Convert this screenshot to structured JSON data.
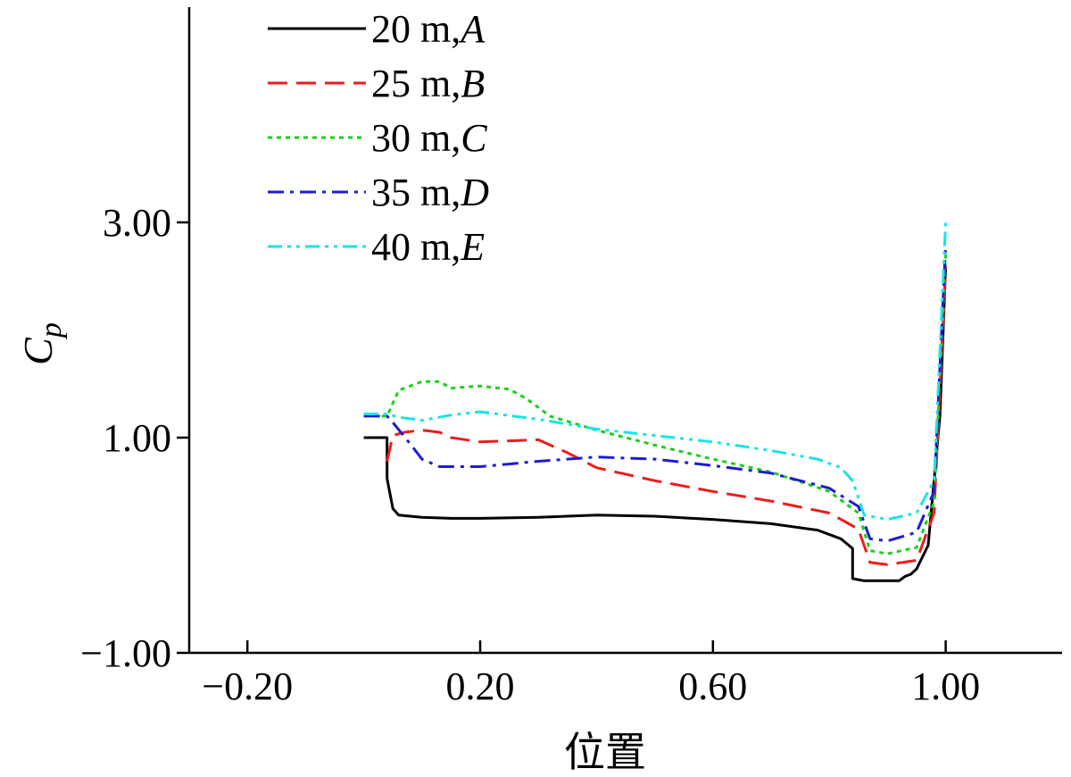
{
  "chart_data": {
    "type": "line",
    "title": "",
    "xlabel": "位置",
    "ylabel": "C",
    "ylabel_subscript": "p",
    "xlim": [
      -0.3,
      1.2
    ],
    "ylim": [
      -1.0,
      5.0
    ],
    "xticks": [
      -0.2,
      0.2,
      0.6,
      1.0
    ],
    "xtick_labels": [
      "−0.20",
      "0.20",
      "0.60",
      "1.00"
    ],
    "yticks": [
      -1.0,
      1.0,
      3.0
    ],
    "ytick_labels": [
      "−1.00",
      "1.00",
      "3.00"
    ],
    "grid": false,
    "legend_position": "top-left",
    "series": [
      {
        "name": "20 m, A",
        "legend_value": "20 m",
        "legend_letter": "A",
        "color": "#000000",
        "dash": "solid",
        "x": [
          0.0,
          0.04,
          0.04,
          0.05,
          0.06,
          0.1,
          0.15,
          0.2,
          0.3,
          0.4,
          0.5,
          0.6,
          0.7,
          0.78,
          0.82,
          0.84,
          0.84,
          0.86,
          0.92,
          0.93,
          0.94,
          0.95,
          0.97,
          0.99,
          1.0
        ],
        "y": [
          1.0,
          1.0,
          0.62,
          0.34,
          0.28,
          0.26,
          0.25,
          0.25,
          0.26,
          0.28,
          0.27,
          0.24,
          0.2,
          0.14,
          0.06,
          -0.03,
          -0.31,
          -0.33,
          -0.33,
          -0.29,
          -0.27,
          -0.22,
          0.0,
          1.2,
          2.6
        ]
      },
      {
        "name": "25 m, B",
        "legend_value": "25 m",
        "legend_letter": "B",
        "color": "#ee1c1c",
        "dash": "dashed",
        "x": [
          0.04,
          0.05,
          0.07,
          0.1,
          0.13,
          0.15,
          0.2,
          0.25,
          0.3,
          0.35,
          0.4,
          0.5,
          0.6,
          0.7,
          0.8,
          0.85,
          0.87,
          0.9,
          0.95,
          0.98,
          1.0
        ],
        "y": [
          0.78,
          1.02,
          1.05,
          1.07,
          1.05,
          1.0,
          0.96,
          0.97,
          0.98,
          0.86,
          0.72,
          0.6,
          0.5,
          0.41,
          0.3,
          0.15,
          -0.16,
          -0.18,
          -0.14,
          0.3,
          2.6
        ]
      },
      {
        "name": "30 m, C",
        "legend_value": "30 m",
        "legend_letter": "C",
        "color": "#1ccf1c",
        "dash": "dotted",
        "x": [
          0.0,
          0.04,
          0.06,
          0.1,
          0.13,
          0.15,
          0.2,
          0.25,
          0.28,
          0.32,
          0.4,
          0.5,
          0.6,
          0.7,
          0.8,
          0.85,
          0.87,
          0.9,
          0.95,
          0.98,
          1.0
        ],
        "y": [
          1.2,
          1.2,
          1.44,
          1.52,
          1.52,
          1.46,
          1.48,
          1.45,
          1.36,
          1.2,
          1.07,
          0.93,
          0.8,
          0.68,
          0.5,
          0.3,
          -0.05,
          -0.08,
          -0.02,
          0.4,
          2.7
        ]
      },
      {
        "name": "35 m, D",
        "legend_value": "35 m",
        "legend_letter": "D",
        "color": "#1c1cd8",
        "dash": "dashdot",
        "x": [
          0.0,
          0.04,
          0.05,
          0.08,
          0.1,
          0.13,
          0.2,
          0.3,
          0.4,
          0.5,
          0.6,
          0.7,
          0.8,
          0.85,
          0.87,
          0.9,
          0.95,
          0.98,
          1.0
        ],
        "y": [
          1.2,
          1.2,
          1.14,
          0.94,
          0.8,
          0.73,
          0.73,
          0.78,
          0.82,
          0.8,
          0.74,
          0.67,
          0.53,
          0.36,
          0.06,
          0.04,
          0.12,
          0.5,
          2.8
        ]
      },
      {
        "name": "40 m, E",
        "legend_value": "40 m",
        "legend_letter": "E",
        "color": "#19e4e4",
        "dash": "dashdotdot",
        "x": [
          0.0,
          0.04,
          0.06,
          0.1,
          0.15,
          0.2,
          0.3,
          0.4,
          0.5,
          0.6,
          0.7,
          0.78,
          0.82,
          0.84,
          0.86,
          0.9,
          0.95,
          0.98,
          1.0
        ],
        "y": [
          1.22,
          1.22,
          1.19,
          1.16,
          1.21,
          1.24,
          1.17,
          1.08,
          1.02,
          0.96,
          0.88,
          0.8,
          0.72,
          0.6,
          0.28,
          0.24,
          0.3,
          0.6,
          3.0
        ]
      }
    ]
  }
}
